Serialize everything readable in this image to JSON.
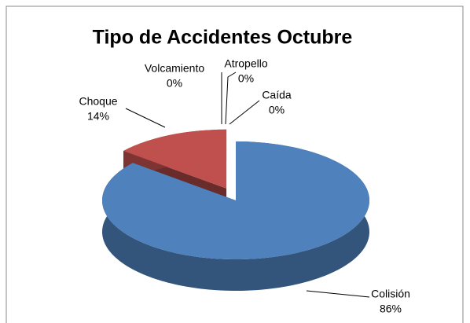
{
  "chart_data": {
    "type": "pie3d",
    "title": "Tipo de Accidentes Octubre",
    "categories": [
      "Colisión",
      "Choque",
      "Volcamiento",
      "Atropello",
      "Caída"
    ],
    "values": [
      86,
      14,
      0,
      0,
      0
    ],
    "value_labels": [
      "86%",
      "14%",
      "0%",
      "0%",
      "0%"
    ],
    "colors": [
      "#4f81bd",
      "#c0504d",
      "#9bbb59",
      "#8064a2",
      "#4bacc6"
    ]
  }
}
